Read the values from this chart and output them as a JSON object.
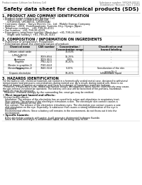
{
  "title": "Safety data sheet for chemical products (SDS)",
  "header_left": "Product name: Lithium Ion Battery Cell",
  "header_right_line1": "Substance number: 98F048-00010",
  "header_right_line2": "Established / Revision: Dec.7.2010",
  "section1_title": "1. PRODUCT AND COMPANY IDENTIFICATION",
  "section1_lines": [
    "• Product name: Lithium Ion Battery Cell",
    "• Product code: Cylindrical-type cell",
    "     (UR18650J, UR18650L, UR18650A)",
    "• Company name:   Sanyo Electric Co., Ltd.  Mobile Energy Company",
    "• Address:   2001  Kamikawakami, Sumoto-City, Hyogo, Japan",
    "• Telephone number:   +81-799-26-4111",
    "• Fax number:  +81-799-26-4129",
    "• Emergency telephone number (Weekday): +81-799-26-3562",
    "     (Night and holiday): +81-799-26-3101"
  ],
  "section2_title": "2. COMPOSITION / INFORMATION ON INGREDIENTS",
  "section2_subtitle": "• Substance or preparation: Preparation",
  "section2_sub2": "• Information about the chemical nature of product:",
  "table_col_header": "Chemical name",
  "table_header2": "CAS number",
  "table_header3": "Concentration /\nConcentration range",
  "table_header4": "Classification and\nhazard labeling",
  "table_rows": [
    [
      "Lithium cobalt oxide\n(LiMnCoNiO4)",
      "-",
      "30-60%",
      "-"
    ],
    [
      "Iron",
      "7439-89-6",
      "15-25%",
      "-"
    ],
    [
      "Aluminum",
      "7429-90-5",
      "2-8%",
      "-"
    ],
    [
      "Graphite\n(Binder in graphite-1)\n(Binder in graphite-2)",
      "7782-42-5\n7740-44-0",
      "10-20%",
      "-"
    ],
    [
      "Copper",
      "7440-50-8",
      "5-15%",
      "Sensitization of the skin\ngroup No.2"
    ],
    [
      "Organic electrolyte",
      "-",
      "10-20%",
      "Inflammable liquid"
    ]
  ],
  "section3_title": "3. HAZARDS IDENTIFICATION",
  "section3_para1": "For the battery cell, chemical materials are stored in a hermetically sealed metal case, designed to withstand",
  "section3_para2": "temperatures and pressures-concentrations during normal use. As a result, during normal use, there is no",
  "section3_para3": "physical danger of ignition or explosion and there is no danger of hazardous materials leakage.",
  "section3_para4": "  However, if exposed to a fire, added mechanical shocks, decomposed, when electric short-circuity may cause,",
  "section3_para5": "the gas release ventilator be operated. The battery cell case will be breached of fire-portions, hazardous",
  "section3_para6": "materials may be released.",
  "section3_para7": "  Moreover, if heated strongly by the surrounding fire, smut gas may be emitted.",
  "section3_bullet1": "• Most important hazard and effects:",
  "section3_sub1a": "Human health effects:",
  "section3_sub1b": "  Inhalation: The release of the electrolyte has an anesthetic action and stimulates in respiratory tract.",
  "section3_sub1c": "  Skin contact: The release of the electrolyte stimulates a skin. The electrolyte skin contact causes a",
  "section3_sub1d": "  sore and stimulation on the skin.",
  "section3_sub1e": "  Eye contact: The release of the electrolyte stimulates eyes. The electrolyte eye contact causes a sore",
  "section3_sub1f": "  and stimulation on the eye. Especially, a substance that causes a strong inflammation of the eye is",
  "section3_sub1g": "  contained.",
  "section3_sub1h": "  Environmental effects: Since a battery cell remains in the environment, do not throw out it into the",
  "section3_sub1i": "  environment.",
  "section3_bullet2": "• Specific hazards:",
  "section3_sub2a": "  If the electrolyte contacts with water, it will generate detrimental hydrogen fluoride.",
  "section3_sub2b": "  Since the used electrolyte is inflammable liquid, do not bring close to fire.",
  "bg_color": "#ffffff",
  "text_color": "#000000",
  "gray_color": "#888888",
  "light_gray": "#dddddd",
  "header_text_color": "#666666"
}
